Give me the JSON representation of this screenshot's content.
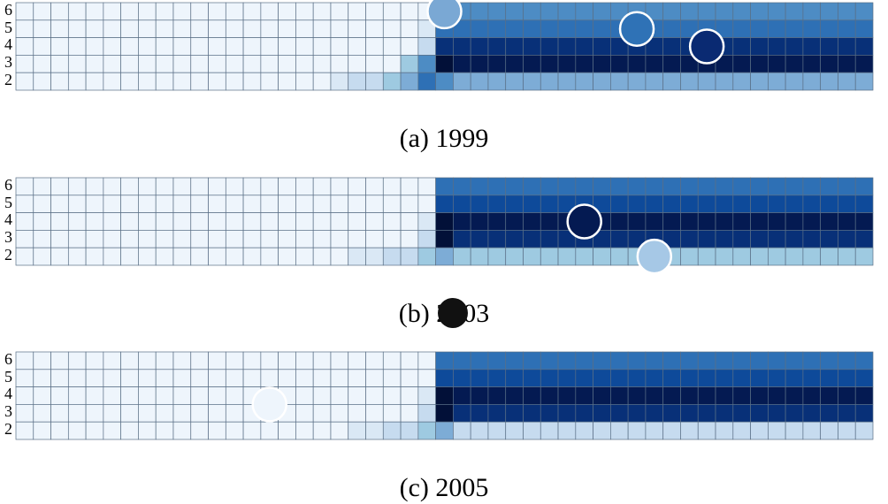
{
  "palette": [
    "#eef5fc",
    "#dae8f5",
    "#c6dbef",
    "#9ecae1",
    "#7dacd6",
    "#4d8cc4",
    "#2e70b5",
    "#0e4a9a",
    "#083078",
    "#041a52",
    "#021038"
  ],
  "chart_data": [
    {
      "type": "heatmap",
      "caption": "(a)  1999",
      "y_ticks": [
        "6",
        "5",
        "4",
        "3",
        "2"
      ],
      "n_columns": 49,
      "cells": [
        [
          0,
          0,
          0,
          0,
          0,
          0,
          0,
          0,
          0,
          0,
          0,
          0,
          0,
          0,
          0,
          0,
          0,
          0,
          0,
          0,
          0,
          0,
          0,
          0,
          5,
          5,
          5,
          5,
          5,
          5,
          5,
          5,
          5,
          5,
          5,
          5,
          5,
          5,
          5,
          5,
          5,
          5,
          5,
          5,
          5,
          5,
          5,
          5,
          5
        ],
        [
          0,
          0,
          0,
          0,
          0,
          0,
          0,
          0,
          0,
          0,
          0,
          0,
          0,
          0,
          0,
          0,
          0,
          0,
          0,
          0,
          0,
          0,
          0,
          1,
          6,
          6,
          6,
          6,
          6,
          6,
          6,
          6,
          6,
          6,
          6,
          6,
          6,
          6,
          6,
          6,
          6,
          6,
          6,
          6,
          6,
          6,
          6,
          6,
          6
        ],
        [
          0,
          0,
          0,
          0,
          0,
          0,
          0,
          0,
          0,
          0,
          0,
          0,
          0,
          0,
          0,
          0,
          0,
          0,
          0,
          0,
          0,
          0,
          0,
          2,
          8,
          8,
          8,
          8,
          8,
          8,
          8,
          8,
          8,
          8,
          8,
          8,
          8,
          8,
          8,
          8,
          8,
          8,
          8,
          8,
          8,
          8,
          8,
          8,
          8
        ],
        [
          0,
          0,
          0,
          0,
          0,
          0,
          0,
          0,
          0,
          0,
          0,
          0,
          0,
          0,
          0,
          0,
          0,
          0,
          0,
          0,
          0,
          0,
          3,
          5,
          10,
          9,
          9,
          9,
          9,
          9,
          9,
          9,
          9,
          9,
          9,
          9,
          9,
          9,
          9,
          9,
          9,
          9,
          9,
          9,
          9,
          9,
          9,
          9,
          9
        ],
        [
          0,
          0,
          0,
          0,
          0,
          0,
          0,
          0,
          0,
          0,
          0,
          0,
          0,
          0,
          0,
          0,
          0,
          0,
          1,
          2,
          2,
          3,
          4,
          6,
          5,
          4,
          4,
          4,
          4,
          4,
          4,
          4,
          4,
          4,
          4,
          4,
          4,
          4,
          4,
          4,
          4,
          4,
          4,
          4,
          4,
          4,
          4,
          4,
          4
        ]
      ],
      "circles": [
        {
          "col": 24,
          "row": 0,
          "color": "#7aa8d4"
        },
        {
          "col": 35,
          "row": 1,
          "color": "#2f72b6"
        },
        {
          "col": 39,
          "row": 2,
          "color": "#0a2a72"
        }
      ]
    },
    {
      "type": "heatmap",
      "caption": "(b)  2003",
      "y_ticks": [
        "6",
        "5",
        "4",
        "3",
        "2"
      ],
      "n_columns": 49,
      "cells": [
        [
          0,
          0,
          0,
          0,
          0,
          0,
          0,
          0,
          0,
          0,
          0,
          0,
          0,
          0,
          0,
          0,
          0,
          0,
          0,
          0,
          0,
          0,
          0,
          0,
          6,
          6,
          6,
          6,
          6,
          6,
          6,
          6,
          6,
          6,
          6,
          6,
          6,
          6,
          6,
          6,
          6,
          6,
          6,
          6,
          6,
          6,
          6,
          6,
          6
        ],
        [
          0,
          0,
          0,
          0,
          0,
          0,
          0,
          0,
          0,
          0,
          0,
          0,
          0,
          0,
          0,
          0,
          0,
          0,
          0,
          0,
          0,
          0,
          0,
          0,
          7,
          7,
          7,
          7,
          7,
          7,
          7,
          7,
          7,
          7,
          7,
          7,
          7,
          7,
          7,
          7,
          7,
          7,
          7,
          7,
          7,
          7,
          7,
          7,
          7
        ],
        [
          0,
          0,
          0,
          0,
          0,
          0,
          0,
          0,
          0,
          0,
          0,
          0,
          0,
          0,
          0,
          0,
          0,
          0,
          0,
          0,
          0,
          0,
          0,
          1,
          10,
          9,
          9,
          9,
          9,
          9,
          9,
          9,
          9,
          9,
          9,
          9,
          9,
          9,
          9,
          9,
          9,
          9,
          9,
          9,
          9,
          9,
          9,
          9,
          9
        ],
        [
          0,
          0,
          0,
          0,
          0,
          0,
          0,
          0,
          0,
          0,
          0,
          0,
          0,
          0,
          0,
          0,
          0,
          0,
          0,
          0,
          0,
          0,
          0,
          2,
          10,
          8,
          8,
          8,
          8,
          8,
          8,
          8,
          8,
          8,
          8,
          8,
          8,
          8,
          8,
          8,
          8,
          8,
          8,
          8,
          8,
          8,
          8,
          8,
          8
        ],
        [
          0,
          0,
          0,
          0,
          0,
          0,
          0,
          0,
          0,
          0,
          0,
          0,
          0,
          0,
          0,
          0,
          0,
          0,
          0,
          1,
          1,
          2,
          2,
          3,
          4,
          3,
          3,
          3,
          3,
          3,
          3,
          3,
          3,
          3,
          3,
          3,
          3,
          3,
          3,
          3,
          3,
          3,
          3,
          3,
          3,
          3,
          3,
          3,
          3
        ]
      ],
      "circles": [
        {
          "col": 32,
          "row": 2,
          "color": "#041a52"
        },
        {
          "col": 36,
          "row": 4,
          "color": "#a6c8e6"
        }
      ]
    },
    {
      "type": "heatmap",
      "caption": "(c)  2005",
      "y_ticks": [
        "6",
        "5",
        "4",
        "3",
        "2"
      ],
      "n_columns": 49,
      "cells": [
        [
          0,
          0,
          0,
          0,
          0,
          0,
          0,
          0,
          0,
          0,
          0,
          0,
          0,
          0,
          0,
          0,
          0,
          0,
          0,
          0,
          0,
          0,
          0,
          0,
          6,
          6,
          6,
          6,
          6,
          6,
          6,
          6,
          6,
          6,
          6,
          6,
          6,
          6,
          6,
          6,
          6,
          6,
          6,
          6,
          6,
          6,
          6,
          6,
          6
        ],
        [
          0,
          0,
          0,
          0,
          0,
          0,
          0,
          0,
          0,
          0,
          0,
          0,
          0,
          0,
          0,
          0,
          0,
          0,
          0,
          0,
          0,
          0,
          0,
          0,
          7,
          7,
          7,
          7,
          7,
          7,
          7,
          7,
          7,
          7,
          7,
          7,
          7,
          7,
          7,
          7,
          7,
          7,
          7,
          7,
          7,
          7,
          7,
          7,
          7
        ],
        [
          0,
          0,
          0,
          0,
          0,
          0,
          0,
          0,
          0,
          0,
          0,
          0,
          0,
          0,
          0,
          0,
          0,
          0,
          0,
          0,
          0,
          0,
          0,
          1,
          10,
          9,
          9,
          9,
          9,
          9,
          9,
          9,
          9,
          9,
          9,
          9,
          9,
          9,
          9,
          9,
          9,
          9,
          9,
          9,
          9,
          9,
          9,
          9,
          9
        ],
        [
          0,
          0,
          0,
          0,
          0,
          0,
          0,
          0,
          0,
          0,
          0,
          0,
          0,
          0,
          0,
          0,
          0,
          0,
          0,
          0,
          0,
          0,
          0,
          2,
          10,
          8,
          8,
          8,
          8,
          8,
          8,
          8,
          8,
          8,
          8,
          8,
          8,
          8,
          8,
          8,
          8,
          8,
          8,
          8,
          8,
          8,
          8,
          8,
          8
        ],
        [
          0,
          0,
          0,
          0,
          0,
          0,
          0,
          0,
          0,
          0,
          0,
          0,
          0,
          0,
          0,
          0,
          0,
          0,
          0,
          1,
          1,
          2,
          2,
          3,
          4,
          2,
          2,
          2,
          2,
          2,
          2,
          2,
          2,
          2,
          2,
          2,
          2,
          2,
          2,
          2,
          2,
          2,
          2,
          2,
          2,
          2,
          2,
          2,
          2
        ]
      ],
      "circles": [
        {
          "col": 14,
          "row": 2.5,
          "color": "#eef5fc"
        }
      ]
    }
  ],
  "overlays": [
    {
      "panel": 1,
      "color": "#111111"
    }
  ]
}
